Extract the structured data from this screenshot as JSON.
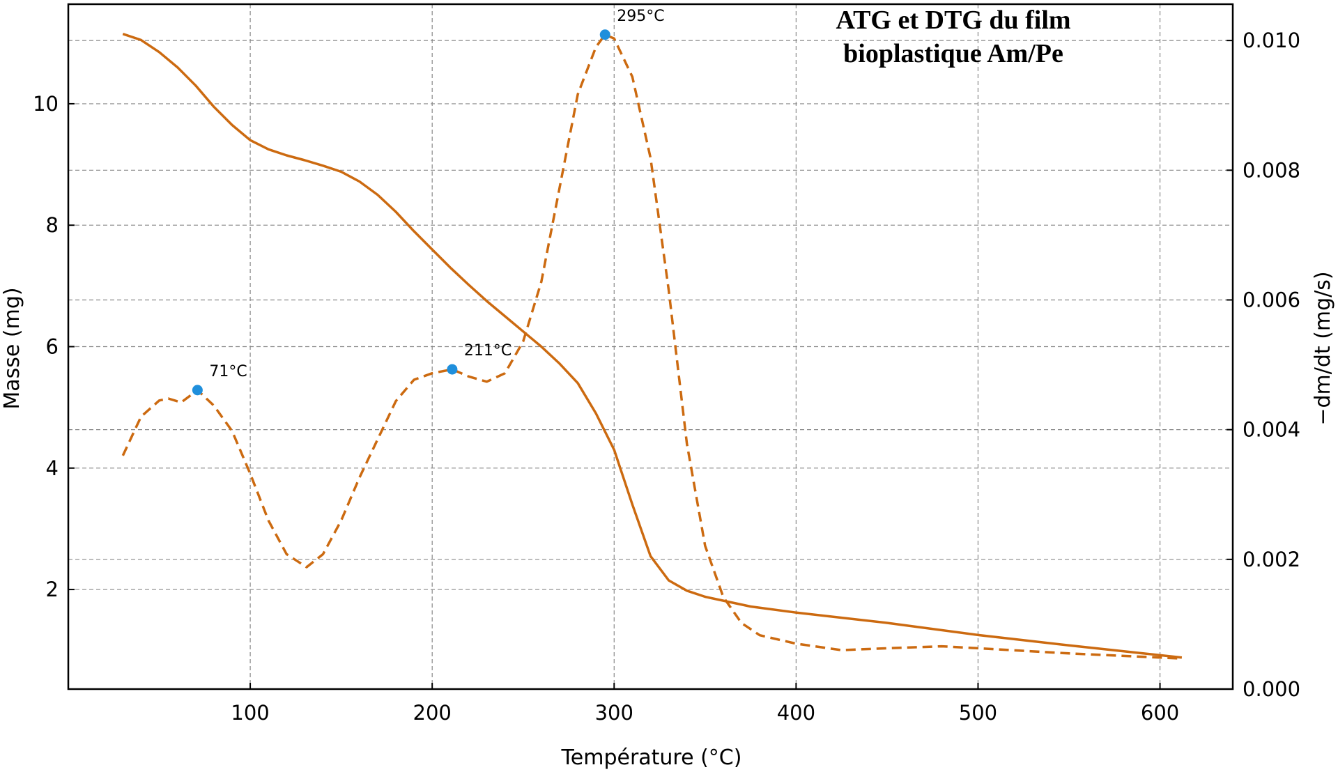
{
  "chart_data": {
    "type": "line",
    "title": [
      "ATG et DTG du film",
      "bioplastique Am/Pe"
    ],
    "xlabel": "Température (°C)",
    "ylabel_left": "Masse (mg)",
    "ylabel_right": "−dm/dt (mg/s)",
    "xlim": [
      0,
      640
    ],
    "ylim_left": [
      0.36,
      11.64
    ],
    "ylim_right": [
      0,
      0.01056
    ],
    "xticks": [
      100,
      200,
      300,
      400,
      500,
      600
    ],
    "yticks_left": [
      2,
      4,
      6,
      8,
      10
    ],
    "yticks_right": [
      "0.000",
      "0.002",
      "0.004",
      "0.006",
      "0.008",
      "0.010"
    ],
    "grid": true,
    "color": "#cc6a10",
    "marker_color": "#1f8fdc",
    "series": [
      {
        "name": "ATG",
        "axis": "left",
        "style": "solid",
        "x": [
          30,
          40,
          50,
          60,
          70,
          80,
          90,
          100,
          110,
          120,
          130,
          140,
          150,
          160,
          170,
          180,
          190,
          200,
          210,
          220,
          230,
          240,
          250,
          260,
          270,
          280,
          290,
          300,
          310,
          320,
          330,
          340,
          350,
          375,
          400,
          450,
          500,
          550,
          612
        ],
        "y": [
          11.15,
          11.05,
          10.85,
          10.6,
          10.3,
          9.95,
          9.65,
          9.4,
          9.25,
          9.15,
          9.07,
          8.98,
          8.88,
          8.72,
          8.5,
          8.22,
          7.9,
          7.6,
          7.3,
          7.02,
          6.75,
          6.5,
          6.25,
          6.0,
          5.72,
          5.4,
          4.9,
          4.3,
          3.4,
          2.55,
          2.15,
          1.98,
          1.88,
          1.72,
          1.62,
          1.45,
          1.25,
          1.08,
          0.88
        ]
      },
      {
        "name": "DTG",
        "axis": "right",
        "style": "dashed",
        "x": [
          30,
          40,
          50,
          55,
          62,
          71,
          80,
          90,
          100,
          110,
          120,
          131,
          140,
          150,
          160,
          170,
          180,
          190,
          200,
          211,
          220,
          230,
          240,
          250,
          260,
          270,
          280,
          290,
          295,
          300,
          310,
          320,
          330,
          340,
          350,
          360,
          370,
          380,
          400,
          425,
          450,
          480,
          500,
          550,
          612
        ],
        "y": [
          0.0036,
          0.0042,
          0.00445,
          0.00448,
          0.00442,
          0.00461,
          0.00437,
          0.00398,
          0.00332,
          0.0026,
          0.00208,
          0.00188,
          0.00208,
          0.0026,
          0.00326,
          0.00385,
          0.00444,
          0.00477,
          0.00487,
          0.00493,
          0.00482,
          0.00474,
          0.00487,
          0.00536,
          0.00628,
          0.00773,
          0.00917,
          0.0099,
          0.01009,
          0.01003,
          0.00944,
          0.00819,
          0.00615,
          0.00378,
          0.00221,
          0.00142,
          0.00102,
          0.00083,
          0.0007,
          0.0006,
          0.00063,
          0.00066,
          0.00063,
          0.00055,
          0.00047
        ]
      }
    ],
    "peaks": [
      {
        "x": 71,
        "y": 0.00461,
        "label": "71°C"
      },
      {
        "x": 211,
        "y": 0.00493,
        "label": "211°C"
      },
      {
        "x": 295,
        "y": 0.01009,
        "label": "295°C"
      }
    ]
  }
}
